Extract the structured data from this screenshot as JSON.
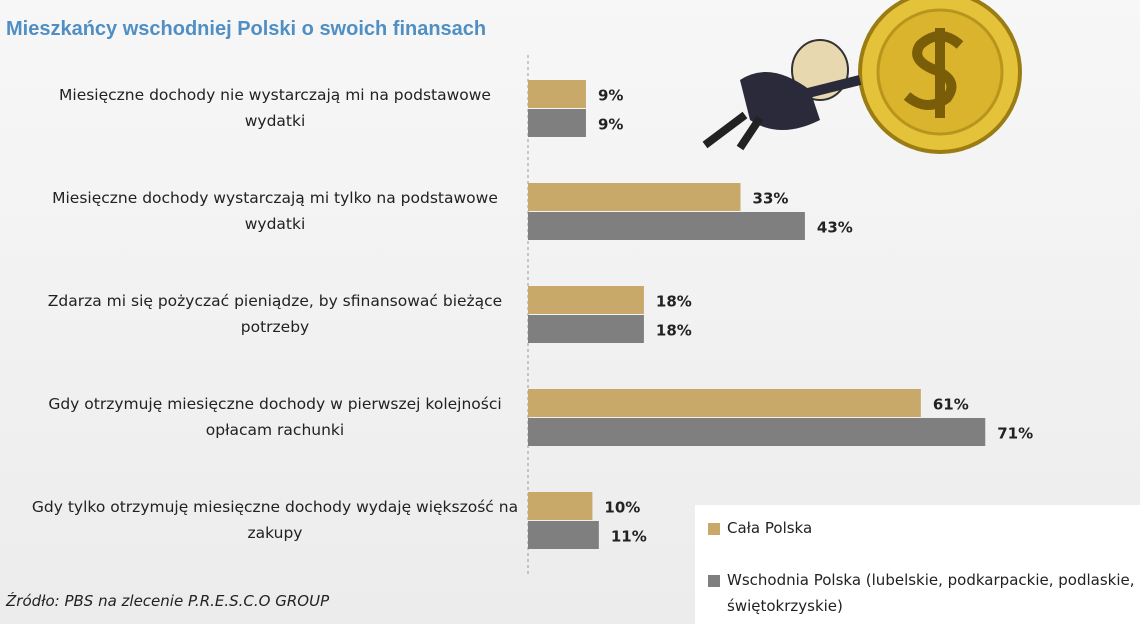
{
  "chart_data": {
    "type": "bar",
    "orientation": "horizontal",
    "title": "Mieszkańcy wschodniej Polski o swoich finansach",
    "categories": [
      "Miesięczne dochody nie wystarczają mi na podstawowe wydatki",
      "Miesięczne dochody wystarczają mi tylko na podstawowe wydatki",
      "Zdarza mi się pożyczać pieniądze, by sfinansować bieżące potrzeby",
      "Gdy otrzymuję miesięczne dochody w pierwszej kolejności opłacam rachunki",
      "Gdy tylko otrzymuję miesięczne dochody wydaję większość na zakupy"
    ],
    "series": [
      {
        "name": "Cała Polska",
        "color": "#c8a96a",
        "values": [
          9,
          33,
          18,
          61,
          10
        ],
        "value_labels": [
          "9%",
          "33%",
          "18%",
          "61%",
          "10%"
        ]
      },
      {
        "name": "Wschodnia Polska (lubelskie, podkarpackie, podlaskie, świętokrzyskie)",
        "color": "#7f7f7f",
        "values": [
          9,
          43,
          18,
          71,
          11
        ],
        "value_labels": [
          "9%",
          "43%",
          "18%",
          "71%",
          "11%"
        ]
      }
    ],
    "source": "Źródło: PBS na zlecenie P.R.E.S.C.O GROUP"
  }
}
